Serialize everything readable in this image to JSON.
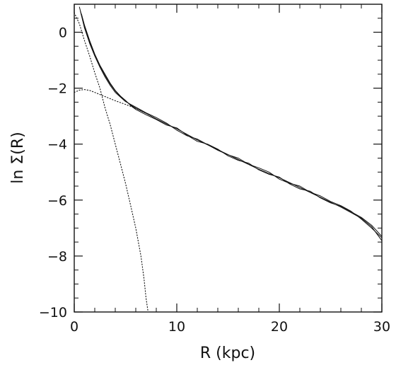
{
  "chart_data": {
    "type": "line",
    "title": "",
    "xlabel": "R (kpc)",
    "ylabel": "ln Σ(R)",
    "xlim": [
      0,
      30
    ],
    "ylim": [
      -10,
      1
    ],
    "grid": false,
    "legend": "none",
    "x_ticks": [
      0,
      10,
      20,
      30
    ],
    "x_tick_labels": [
      "0",
      "10",
      "20",
      "30"
    ],
    "y_ticks": [
      0,
      -2,
      -4,
      -6,
      -8,
      -10
    ],
    "y_tick_labels": [
      "0",
      "−2",
      "−4",
      "−6",
      "−8",
      "−10"
    ],
    "series": [
      {
        "style": "solid",
        "points": [
          [
            0.5,
            0.9
          ],
          [
            1,
            0.2
          ],
          [
            1.5,
            -0.35
          ],
          [
            2,
            -0.8
          ],
          [
            2.5,
            -1.2
          ],
          [
            3,
            -1.55
          ],
          [
            3.5,
            -1.85
          ],
          [
            4,
            -2.1
          ],
          [
            4.5,
            -2.3
          ],
          [
            5,
            -2.45
          ],
          [
            5.5,
            -2.6
          ],
          [
            6,
            -2.72
          ],
          [
            7,
            -2.9
          ],
          [
            8,
            -3.1
          ],
          [
            9,
            -3.28
          ],
          [
            10,
            -3.45
          ],
          [
            12,
            -3.85
          ],
          [
            14,
            -4.2
          ],
          [
            16,
            -4.55
          ],
          [
            18,
            -4.9
          ],
          [
            20,
            -5.2
          ],
          [
            22,
            -5.55
          ],
          [
            24,
            -5.9
          ],
          [
            26,
            -6.25
          ],
          [
            27,
            -6.45
          ],
          [
            28,
            -6.65
          ],
          [
            29,
            -6.95
          ],
          [
            30,
            -7.45
          ]
        ]
      },
      {
        "style": "solid",
        "points": [
          [
            0.6,
            0.75
          ],
          [
            1,
            0.15
          ],
          [
            1.5,
            -0.4
          ],
          [
            2,
            -0.85
          ],
          [
            2.5,
            -1.25
          ],
          [
            3,
            -1.6
          ],
          [
            3.5,
            -1.9
          ],
          [
            4,
            -2.15
          ],
          [
            4.5,
            -2.32
          ],
          [
            5,
            -2.48
          ],
          [
            5.5,
            -2.58
          ],
          [
            6,
            -2.68
          ],
          [
            7,
            -2.88
          ],
          [
            8,
            -3.05
          ],
          [
            9,
            -3.25
          ],
          [
            10,
            -3.5
          ],
          [
            11,
            -3.7
          ],
          [
            12,
            -3.82
          ],
          [
            13,
            -4.02
          ],
          [
            14,
            -4.22
          ],
          [
            15,
            -4.38
          ],
          [
            16,
            -4.5
          ],
          [
            17,
            -4.72
          ],
          [
            18,
            -4.85
          ],
          [
            19,
            -5.0
          ],
          [
            20,
            -5.25
          ],
          [
            21,
            -5.4
          ],
          [
            22,
            -5.5
          ],
          [
            23,
            -5.72
          ],
          [
            24,
            -5.85
          ],
          [
            25,
            -6.05
          ],
          [
            26,
            -6.2
          ],
          [
            27,
            -6.4
          ],
          [
            28,
            -6.68
          ],
          [
            29,
            -7.0
          ],
          [
            30,
            -7.35
          ]
        ]
      },
      {
        "style": "solid",
        "points": [
          [
            0.7,
            0.65
          ],
          [
            1,
            0.25
          ],
          [
            1.5,
            -0.3
          ],
          [
            2,
            -0.78
          ],
          [
            2.5,
            -1.18
          ],
          [
            3,
            -1.5
          ],
          [
            3.5,
            -1.82
          ],
          [
            4,
            -2.08
          ],
          [
            4.5,
            -2.28
          ],
          [
            5,
            -2.44
          ],
          [
            5.5,
            -2.62
          ],
          [
            6,
            -2.76
          ],
          [
            7,
            -2.95
          ],
          [
            8,
            -3.12
          ],
          [
            9,
            -3.32
          ],
          [
            10,
            -3.42
          ],
          [
            11,
            -3.68
          ],
          [
            12,
            -3.9
          ],
          [
            13,
            -4.0
          ],
          [
            14,
            -4.18
          ],
          [
            15,
            -4.42
          ],
          [
            16,
            -4.58
          ],
          [
            17,
            -4.68
          ],
          [
            18,
            -4.92
          ],
          [
            19,
            -5.08
          ],
          [
            20,
            -5.18
          ],
          [
            21,
            -5.42
          ],
          [
            22,
            -5.6
          ],
          [
            23,
            -5.68
          ],
          [
            24,
            -5.92
          ],
          [
            25,
            -6.1
          ],
          [
            26,
            -6.22
          ],
          [
            27,
            -6.42
          ],
          [
            28,
            -6.62
          ],
          [
            29,
            -6.9
          ],
          [
            30,
            -7.3
          ]
        ]
      },
      {
        "style": "dotted",
        "points": [
          [
            0,
            0.7
          ],
          [
            0.5,
            0.3
          ],
          [
            1,
            -0.3
          ],
          [
            1.5,
            -0.85
          ],
          [
            2,
            -1.45
          ],
          [
            2.5,
            -2.0
          ],
          [
            3,
            -2.7
          ],
          [
            3.5,
            -3.3
          ],
          [
            4,
            -4.0
          ],
          [
            4.5,
            -4.7
          ],
          [
            5,
            -5.4
          ],
          [
            5.5,
            -6.2
          ],
          [
            6,
            -7.0
          ],
          [
            6.5,
            -8.0
          ],
          [
            6.8,
            -8.8
          ],
          [
            7,
            -9.5
          ],
          [
            7.2,
            -10
          ]
        ]
      },
      {
        "style": "dotted",
        "points": [
          [
            0,
            -2.15
          ],
          [
            0.5,
            -2.07
          ],
          [
            1,
            -2.05
          ],
          [
            1.5,
            -2.08
          ],
          [
            2,
            -2.15
          ],
          [
            3,
            -2.3
          ],
          [
            4,
            -2.45
          ],
          [
            5,
            -2.58
          ],
          [
            6,
            -2.72
          ],
          [
            7,
            -2.9
          ]
        ]
      }
    ]
  }
}
